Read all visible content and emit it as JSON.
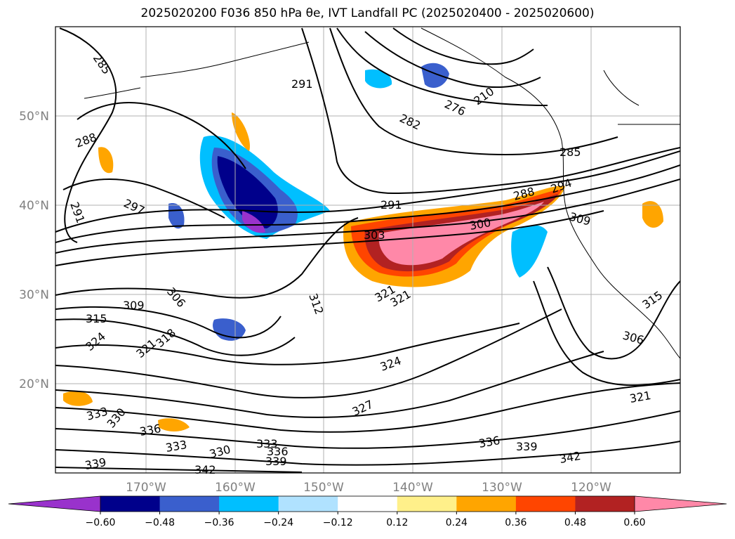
{
  "title": "2025020200 F036 850 hPa θe, IVT Landfall PC (2025020400 - 2025020600)",
  "map": {
    "lat_labels": [
      "50°N",
      "40°N",
      "30°N",
      "20°N"
    ],
    "lon_labels": [
      "170°W",
      "160°W",
      "150°W",
      "140°W",
      "130°W",
      "120°W"
    ],
    "contour_labels": [
      "285",
      "291",
      "288",
      "291",
      "297",
      "276",
      "282",
      "210",
      "285",
      "288",
      "294",
      "291",
      "303",
      "300",
      "309",
      "306",
      "312",
      "309",
      "315",
      "324",
      "321",
      "318",
      "321",
      "306",
      "315",
      "324",
      "321",
      "333",
      "330",
      "336",
      "327",
      "333",
      "330",
      "333",
      "336",
      "339",
      "336",
      "339",
      "342",
      "342",
      "339",
      "321"
    ],
    "shading_colors": {
      "neg_060": "#9932cc",
      "neg_048": "#00008b",
      "neg_036": "#3a5fcd",
      "neg_024": "#00bfff",
      "neg_012": "#b0e2ff",
      "pos_012": "#fff08a",
      "pos_024": "#ffa500",
      "pos_036": "#ff4500",
      "pos_048": "#b22222",
      "pos_060": "#ff88a8"
    }
  },
  "colorbar": {
    "ticks": [
      "−0.60",
      "−0.48",
      "−0.36",
      "−0.24",
      "−0.12",
      "0.12",
      "0.24",
      "0.36",
      "0.48",
      "0.60"
    ],
    "colors": [
      "#9932cc",
      "#00008b",
      "#3a5fcd",
      "#00bfff",
      "#b0e2ff",
      "#ffffff",
      "#fff08a",
      "#ffa500",
      "#ff4500",
      "#b22222",
      "#ff88a8"
    ]
  }
}
